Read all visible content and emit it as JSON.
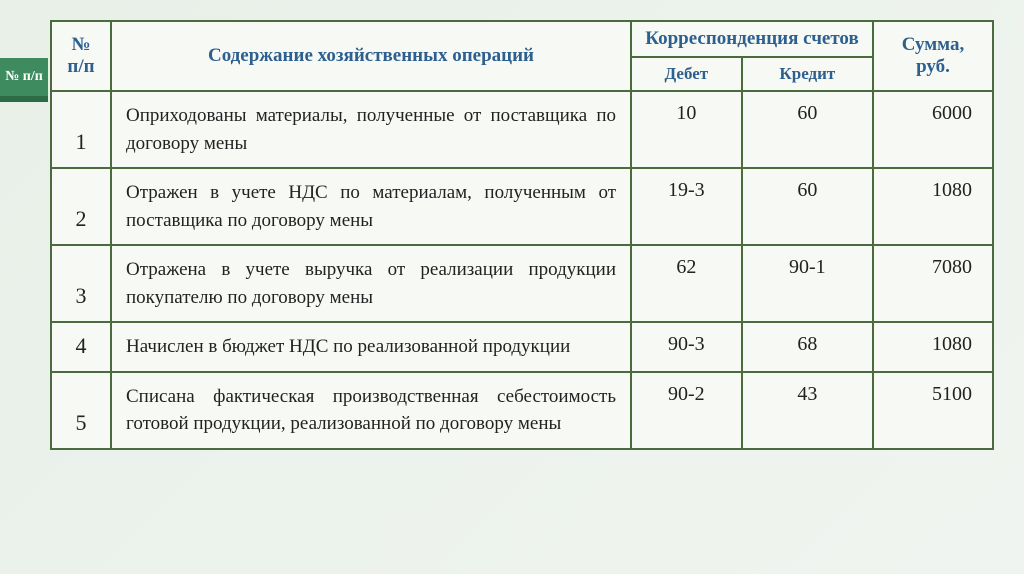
{
  "accent_label": "№ п/п",
  "header": {
    "num": "№ п/п",
    "desc": "Содержание хозяйственных операций",
    "corr": "Корреспонденция счетов",
    "sum": "Сумма, руб.",
    "debit": "Дебет",
    "credit": "Кредит"
  },
  "rows": [
    {
      "n": "1",
      "desc": "Оприходованы материалы, полученные от поставщика по договору мены",
      "debit": "10",
      "credit": "60",
      "sum": "6000"
    },
    {
      "n": "2",
      "desc": "Отражен в учете НДС по материалам, полученным от поставщика по договору мены",
      "debit": "19-3",
      "credit": "60",
      "sum": "1080"
    },
    {
      "n": "3",
      "desc": "Отражена в учете выручка от реализации продукции покупателю по договору мены",
      "debit": "62",
      "credit": "90-1",
      "sum": "7080"
    },
    {
      "n": "4",
      "desc": "Начислен в бюджет НДС по реализованной продукции",
      "debit": "90-3",
      "credit": "68",
      "sum": "1080"
    },
    {
      "n": "5",
      "desc": "Списана фактическая производственная себестоимость готовой продукции, реализованной по договору мены",
      "debit": "90-2",
      "credit": "43",
      "sum": "5100"
    }
  ],
  "style": {
    "border_color": "#4a6b3d",
    "header_text_color": "#2d5f8f",
    "accent_bg": "#3d8b5f",
    "accent_shadow": "#2d6b47",
    "background_gradient_from": "#e8f0e8",
    "background_gradient_to": "#f0f4f0",
    "table_bg": "#f7f9f5",
    "body_font": "Georgia",
    "header_fontsize_pt": 15,
    "body_fontsize_pt": 15
  }
}
